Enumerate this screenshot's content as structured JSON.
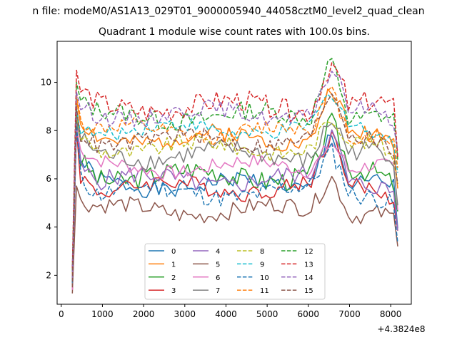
{
  "suptitle": "n file: modeM0/AS1A13_029T01_9000005940_44058cztM0_level2_quad_clean",
  "chart_data": {
    "type": "line",
    "title": "Quadrant 1 module wise count rates with 100.0s bins.",
    "xlabel": "",
    "ylabel": "",
    "x_offset_label": "+4.3824e8",
    "xlim": [
      -100,
      8500
    ],
    "ylim": [
      0.8,
      11.7
    ],
    "xticks": [
      0,
      1000,
      2000,
      3000,
      4000,
      5000,
      6000,
      7000,
      8000
    ],
    "yticks": [
      2,
      4,
      6,
      8,
      10
    ],
    "legend_placement": "lower-center",
    "legend_ncol": 4,
    "grid": false,
    "x_start": 270,
    "x_step": 100,
    "x_end": 8170,
    "series": [
      {
        "name": "0",
        "color": "#1f77b4",
        "dash": "solid",
        "pattern": "low",
        "base": 5.75,
        "amp": 0.35,
        "seed": 1,
        "start": 2.0,
        "peak": 8.4,
        "spike": 8.3
      },
      {
        "name": "1",
        "color": "#ff7f0e",
        "dash": "solid",
        "pattern": "mid",
        "base": 7.7,
        "amp": 0.35,
        "seed": 2,
        "start": 1.8,
        "peak": 9.3,
        "spike": 9.9
      },
      {
        "name": "2",
        "color": "#2ca02c",
        "dash": "solid",
        "pattern": "low",
        "base": 6.15,
        "amp": 0.45,
        "seed": 3,
        "start": 1.6,
        "peak": 8.5,
        "spike": 8.2
      },
      {
        "name": "3",
        "color": "#d62728",
        "dash": "solid",
        "pattern": "low",
        "base": 5.65,
        "amp": 0.35,
        "seed": 4,
        "start": 1.7,
        "peak": 8.1,
        "spike": 7.6
      },
      {
        "name": "4",
        "color": "#9467bd",
        "dash": "solid",
        "pattern": "low",
        "base": 5.95,
        "amp": 0.4,
        "seed": 5,
        "start": 1.5,
        "peak": 8.3,
        "spike": 7.9
      },
      {
        "name": "5",
        "color": "#8c564b",
        "dash": "solid",
        "pattern": "low5",
        "base": 4.7,
        "amp": 0.35,
        "seed": 6,
        "start": 1.25,
        "peak": 5.7,
        "spike": 6.3
      },
      {
        "name": "6",
        "color": "#e377c2",
        "dash": "solid",
        "pattern": "mid",
        "base": 6.5,
        "amp": 0.3,
        "seed": 7,
        "start": 1.4,
        "peak": 8.1,
        "spike": 7.8
      },
      {
        "name": "7",
        "color": "#7f7f7f",
        "dash": "solid",
        "pattern": "mid",
        "base": 7.0,
        "amp": 0.4,
        "seed": 8,
        "start": 1.6,
        "peak": 8.6,
        "spike": 8.6
      },
      {
        "name": "8",
        "color": "#bcbd22",
        "dash": "dashed",
        "pattern": "mid",
        "base": 7.3,
        "amp": 0.35,
        "seed": 9,
        "start": 1.9,
        "peak": 8.8,
        "spike": 8.4
      },
      {
        "name": "9",
        "color": "#17becf",
        "dash": "dashed",
        "pattern": "mid",
        "base": 8.05,
        "amp": 0.3,
        "seed": 10,
        "start": 2.1,
        "peak": 8.9,
        "spike": 9.4
      },
      {
        "name": "10",
        "color": "#1f77b4",
        "dash": "dashed",
        "pattern": "low",
        "base": 5.45,
        "amp": 0.4,
        "seed": 11,
        "start": 1.7,
        "peak": 8.2,
        "spike": 7.1
      },
      {
        "name": "11",
        "color": "#ff7f0e",
        "dash": "dashed",
        "pattern": "mid",
        "base": 7.95,
        "amp": 0.35,
        "seed": 12,
        "start": 2.0,
        "peak": 9.5,
        "spike": 9.8
      },
      {
        "name": "12",
        "color": "#2ca02c",
        "dash": "dashed",
        "pattern": "high",
        "base": 8.6,
        "amp": 0.4,
        "seed": 13,
        "start": 2.2,
        "peak": 10.0,
        "spike": 11.2
      },
      {
        "name": "13",
        "color": "#d62728",
        "dash": "dashed",
        "pattern": "high",
        "base": 9.0,
        "amp": 0.45,
        "seed": 14,
        "start": 2.3,
        "peak": 10.5,
        "spike": 11.0
      },
      {
        "name": "14",
        "color": "#9467bd",
        "dash": "dashed",
        "pattern": "high",
        "base": 8.7,
        "amp": 0.35,
        "seed": 15,
        "start": 1.9,
        "peak": 9.6,
        "spike": 10.5
      },
      {
        "name": "15",
        "color": "#8c564b",
        "dash": "dashed",
        "pattern": "mid",
        "base": 7.6,
        "amp": 0.35,
        "seed": 16,
        "start": 1.5,
        "peak": 9.0,
        "spike": 9.5
      }
    ]
  }
}
